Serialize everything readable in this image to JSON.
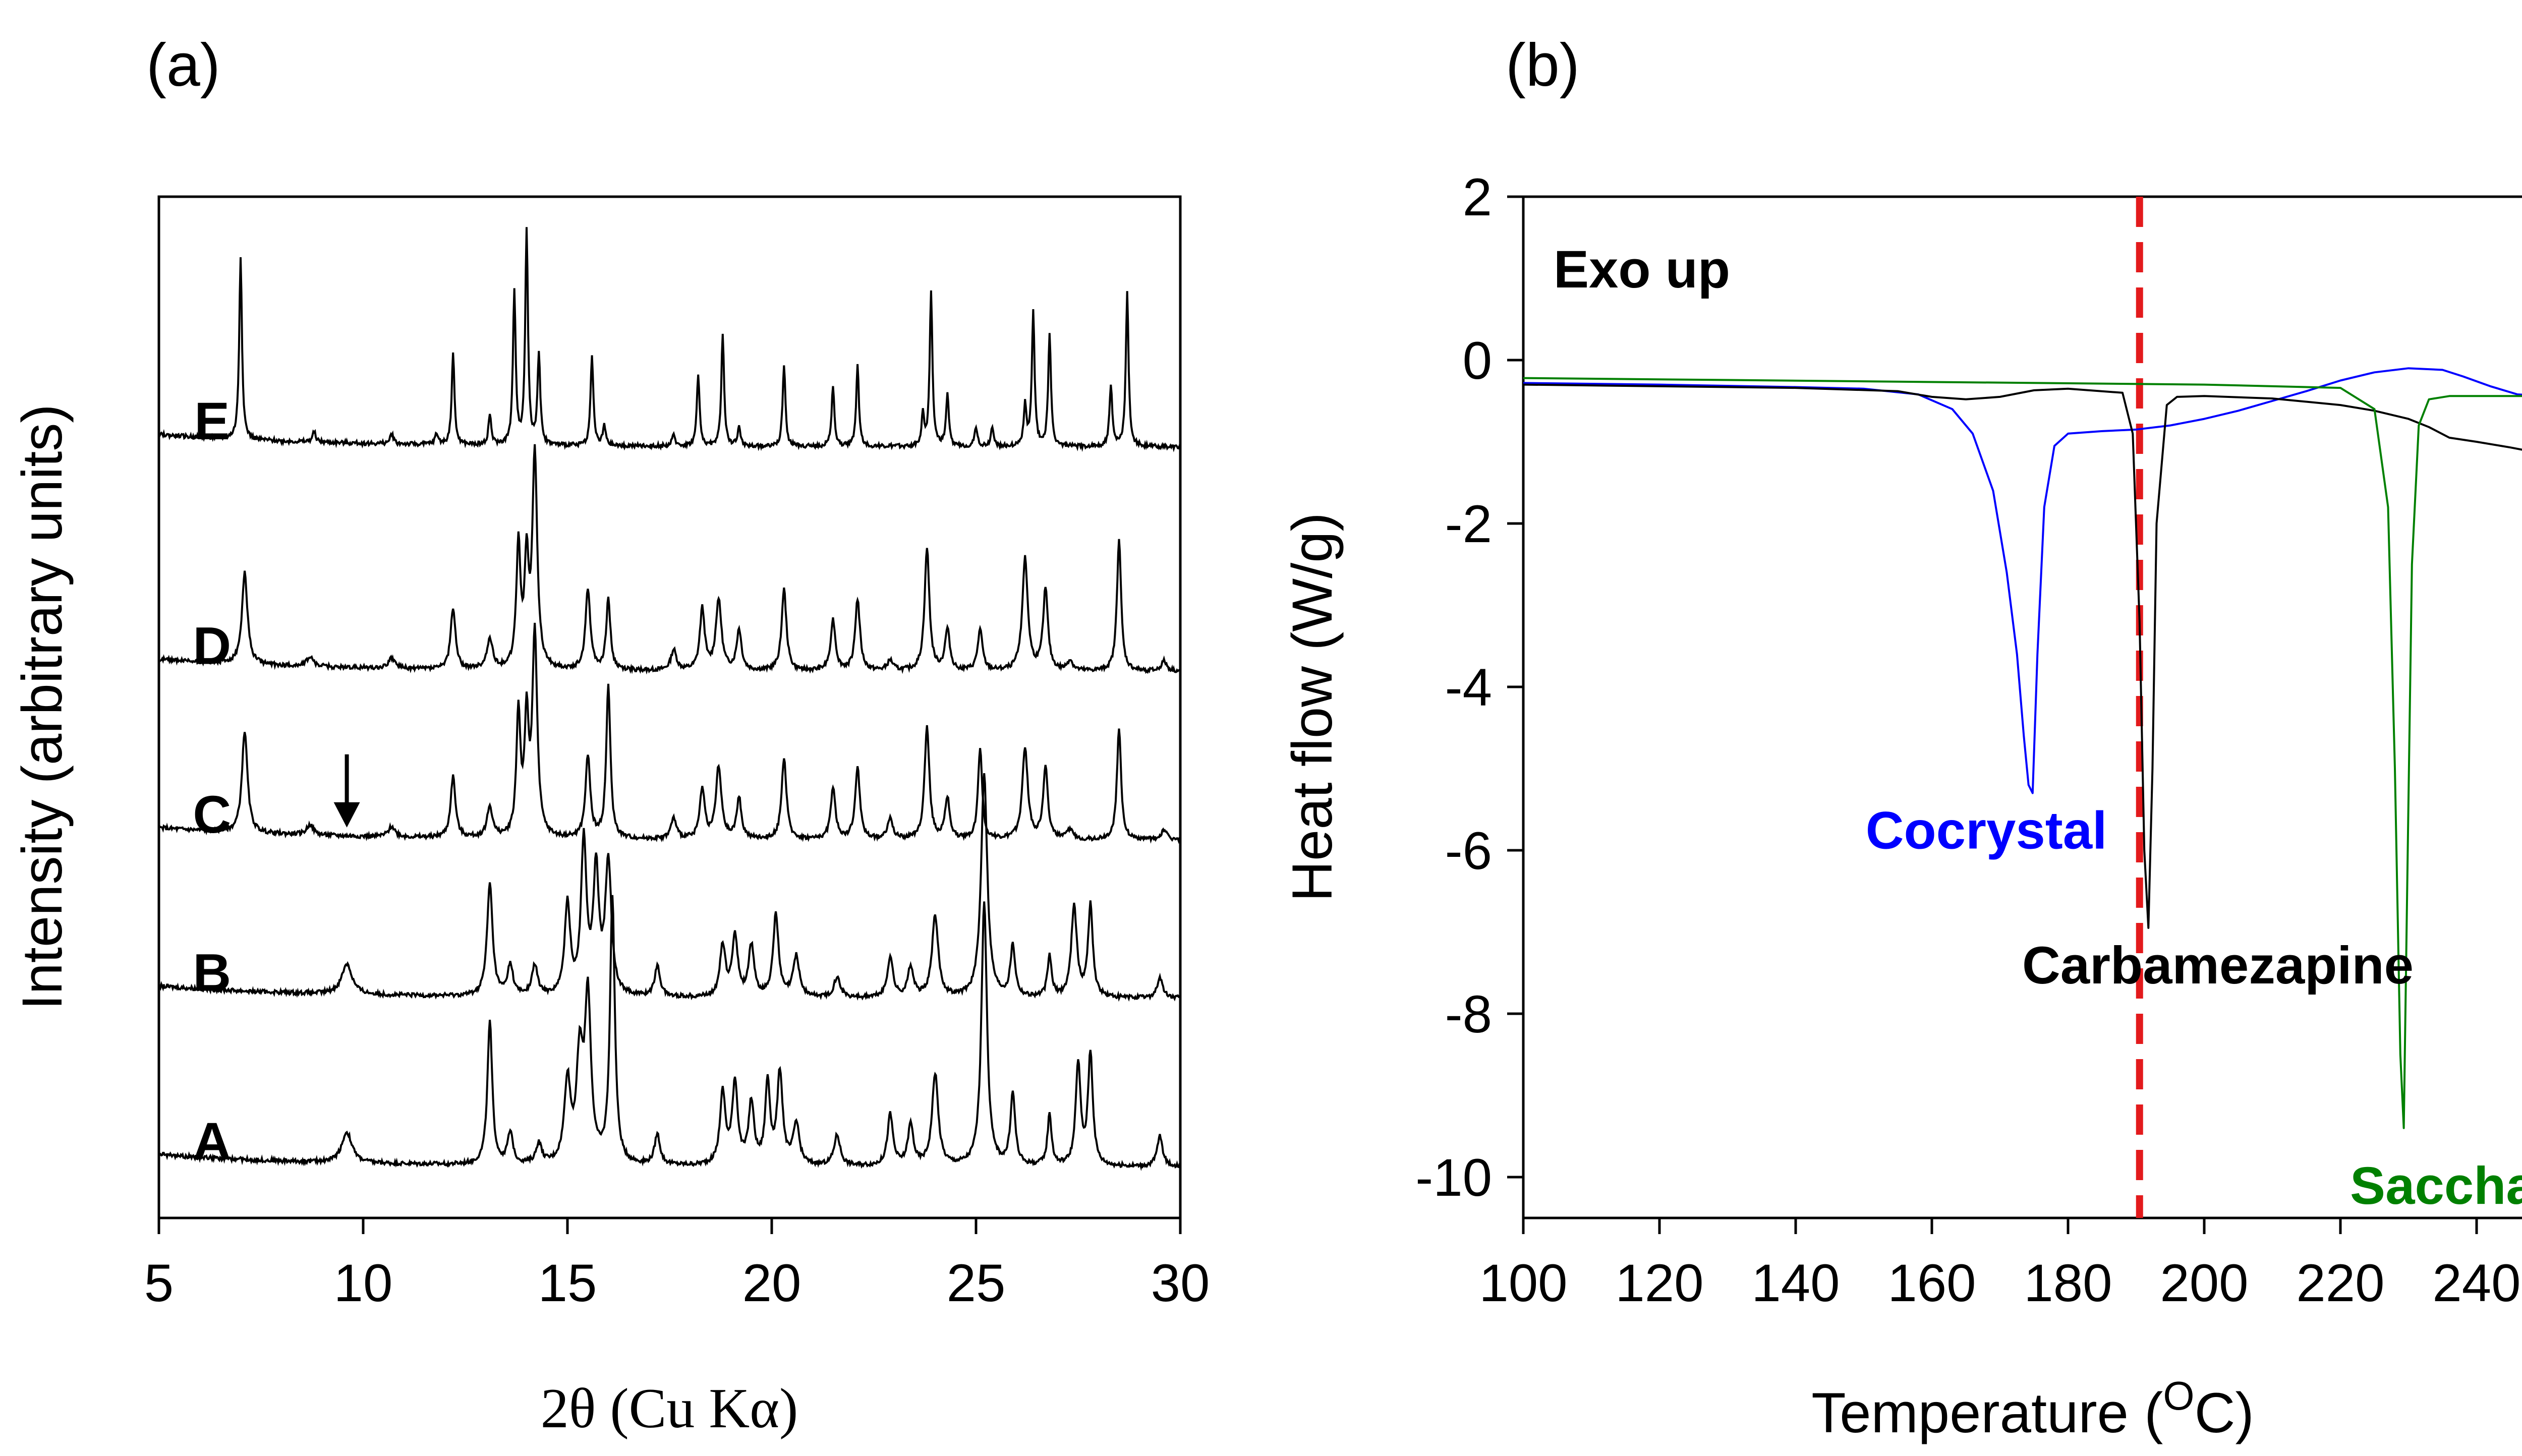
{
  "chart_data": [
    {
      "panel_label": "(a)",
      "type": "line",
      "title": "",
      "xlabel": "2θ (Cu Kα)",
      "ylabel": "Intensity (arbitrary units)",
      "xlim": [
        5,
        30
      ],
      "ylim": [
        0,
        1
      ],
      "xticks": [
        "5",
        "10",
        "15",
        "20",
        "25",
        "30"
      ],
      "grid": false,
      "series": [
        {
          "name": "A",
          "baseline": 0.05,
          "label_x": 6.3,
          "peaks": [
            [
              9.6,
              0.03,
              0.15
            ],
            [
              13.1,
              0.14,
              0.07
            ],
            [
              13.6,
              0.03,
              0.08
            ],
            [
              14.3,
              0.02,
              0.08
            ],
            [
              15.0,
              0.08,
              0.09
            ],
            [
              15.3,
              0.1,
              0.09
            ],
            [
              15.5,
              0.16,
              0.09
            ],
            [
              16.1,
              0.26,
              0.07
            ],
            [
              17.2,
              0.03,
              0.08
            ],
            [
              18.8,
              0.07,
              0.08
            ],
            [
              19.1,
              0.08,
              0.08
            ],
            [
              19.5,
              0.06,
              0.08
            ],
            [
              19.9,
              0.08,
              0.07
            ],
            [
              20.2,
              0.09,
              0.08
            ],
            [
              20.6,
              0.04,
              0.09
            ],
            [
              21.6,
              0.03,
              0.09
            ],
            [
              22.9,
              0.05,
              0.08
            ],
            [
              23.4,
              0.04,
              0.08
            ],
            [
              24.0,
              0.09,
              0.09
            ],
            [
              25.2,
              0.26,
              0.08
            ],
            [
              25.9,
              0.07,
              0.07
            ],
            [
              26.8,
              0.05,
              0.06
            ],
            [
              27.5,
              0.1,
              0.07
            ],
            [
              27.8,
              0.11,
              0.07
            ],
            [
              29.5,
              0.03,
              0.08
            ]
          ]
        },
        {
          "name": "B",
          "baseline": 0.215,
          "label_x": 6.3,
          "peaks": [
            [
              9.6,
              0.03,
              0.15
            ],
            [
              13.1,
              0.11,
              0.08
            ],
            [
              13.6,
              0.03,
              0.08
            ],
            [
              14.2,
              0.03,
              0.08
            ],
            [
              15.0,
              0.09,
              0.08
            ],
            [
              15.4,
              0.15,
              0.08
            ],
            [
              15.7,
              0.12,
              0.08
            ],
            [
              16.0,
              0.13,
              0.09
            ],
            [
              17.2,
              0.03,
              0.08
            ],
            [
              18.8,
              0.05,
              0.08
            ],
            [
              19.1,
              0.06,
              0.08
            ],
            [
              19.5,
              0.05,
              0.08
            ],
            [
              20.1,
              0.08,
              0.08
            ],
            [
              20.6,
              0.04,
              0.09
            ],
            [
              21.6,
              0.02,
              0.09
            ],
            [
              22.9,
              0.04,
              0.08
            ],
            [
              23.4,
              0.03,
              0.08
            ],
            [
              24.0,
              0.08,
              0.09
            ],
            [
              25.2,
              0.22,
              0.09
            ],
            [
              25.9,
              0.05,
              0.07
            ],
            [
              26.8,
              0.04,
              0.06
            ],
            [
              27.4,
              0.09,
              0.08
            ],
            [
              27.8,
              0.09,
              0.07
            ],
            [
              29.5,
              0.02,
              0.08
            ]
          ]
        },
        {
          "name": "C",
          "baseline": 0.37,
          "label_x": 6.3,
          "peaks": [
            [
              7.1,
              0.1,
              0.08
            ],
            [
              8.7,
              0.01,
              0.1
            ],
            [
              10.7,
              0.01,
              0.1
            ],
            [
              12.2,
              0.06,
              0.07
            ],
            [
              13.1,
              0.03,
              0.08
            ],
            [
              13.8,
              0.12,
              0.06
            ],
            [
              14.0,
              0.11,
              0.06
            ],
            [
              14.2,
              0.2,
              0.07
            ],
            [
              15.5,
              0.08,
              0.07
            ],
            [
              16.0,
              0.15,
              0.06
            ],
            [
              17.6,
              0.02,
              0.08
            ],
            [
              18.3,
              0.05,
              0.07
            ],
            [
              18.7,
              0.07,
              0.08
            ],
            [
              19.2,
              0.04,
              0.07
            ],
            [
              20.3,
              0.08,
              0.07
            ],
            [
              21.5,
              0.05,
              0.07
            ],
            [
              22.1,
              0.07,
              0.07
            ],
            [
              22.9,
              0.02,
              0.08
            ],
            [
              23.8,
              0.11,
              0.07
            ],
            [
              24.3,
              0.04,
              0.07
            ],
            [
              25.1,
              0.09,
              0.06
            ],
            [
              26.2,
              0.09,
              0.08
            ],
            [
              26.7,
              0.07,
              0.07
            ],
            [
              27.3,
              0.01,
              0.08
            ],
            [
              28.5,
              0.11,
              0.06
            ],
            [
              29.6,
              0.01,
              0.08
            ]
          ]
        },
        {
          "name": "D",
          "baseline": 0.535,
          "label_x": 6.3,
          "peaks": [
            [
              7.1,
              0.09,
              0.08
            ],
            [
              8.7,
              0.01,
              0.1
            ],
            [
              10.7,
              0.01,
              0.1
            ],
            [
              12.2,
              0.06,
              0.07
            ],
            [
              13.1,
              0.03,
              0.08
            ],
            [
              13.8,
              0.12,
              0.06
            ],
            [
              14.0,
              0.1,
              0.06
            ],
            [
              14.2,
              0.21,
              0.07
            ],
            [
              15.5,
              0.08,
              0.07
            ],
            [
              16.0,
              0.07,
              0.06
            ],
            [
              17.6,
              0.02,
              0.08
            ],
            [
              18.3,
              0.06,
              0.07
            ],
            [
              18.7,
              0.07,
              0.08
            ],
            [
              19.2,
              0.04,
              0.07
            ],
            [
              20.3,
              0.08,
              0.07
            ],
            [
              21.5,
              0.05,
              0.07
            ],
            [
              22.1,
              0.07,
              0.07
            ],
            [
              22.9,
              0.01,
              0.08
            ],
            [
              23.8,
              0.12,
              0.07
            ],
            [
              24.3,
              0.04,
              0.07
            ],
            [
              25.1,
              0.04,
              0.07
            ],
            [
              26.2,
              0.11,
              0.08
            ],
            [
              26.7,
              0.08,
              0.07
            ],
            [
              27.3,
              0.01,
              0.08
            ],
            [
              28.5,
              0.13,
              0.06
            ],
            [
              29.6,
              0.01,
              0.08
            ]
          ]
        },
        {
          "name": "E",
          "baseline": 0.755,
          "label_x": 6.3,
          "peaks": [
            [
              7.0,
              0.18,
              0.04
            ],
            [
              8.8,
              0.01,
              0.05
            ],
            [
              10.7,
              0.01,
              0.05
            ],
            [
              11.8,
              0.01,
              0.05
            ],
            [
              12.2,
              0.09,
              0.04
            ],
            [
              13.1,
              0.03,
              0.04
            ],
            [
              13.7,
              0.15,
              0.04
            ],
            [
              14.0,
              0.21,
              0.04
            ],
            [
              14.3,
              0.09,
              0.04
            ],
            [
              15.6,
              0.09,
              0.04
            ],
            [
              15.9,
              0.02,
              0.04
            ],
            [
              17.6,
              0.01,
              0.05
            ],
            [
              18.2,
              0.07,
              0.04
            ],
            [
              18.8,
              0.11,
              0.04
            ],
            [
              19.2,
              0.02,
              0.04
            ],
            [
              20.3,
              0.08,
              0.04
            ],
            [
              21.5,
              0.06,
              0.04
            ],
            [
              22.1,
              0.08,
              0.04
            ],
            [
              23.7,
              0.03,
              0.04
            ],
            [
              23.9,
              0.15,
              0.04
            ],
            [
              24.3,
              0.05,
              0.04
            ],
            [
              25.0,
              0.02,
              0.04
            ],
            [
              25.4,
              0.02,
              0.04
            ],
            [
              26.2,
              0.04,
              0.04
            ],
            [
              26.4,
              0.13,
              0.04
            ],
            [
              26.8,
              0.11,
              0.04
            ],
            [
              28.3,
              0.06,
              0.04
            ],
            [
              28.7,
              0.15,
              0.04
            ]
          ]
        }
      ],
      "annotations": [
        {
          "type": "arrow",
          "x": 9.6,
          "target_series": "C"
        }
      ]
    },
    {
      "panel_label": "(b)",
      "type": "line",
      "title": "",
      "xlabel": "Temperature (",
      "xlabel_sup": "O",
      "xlabel_tail": "C)",
      "ylabel": "Heat flow (W/g)",
      "xlim": [
        100,
        250
      ],
      "ylim": [
        -10.5,
        2
      ],
      "xticks": [
        100,
        120,
        140,
        160,
        180,
        200,
        220,
        240
      ],
      "yticks": [
        2,
        0,
        -2,
        -4,
        -6,
        -8,
        -10
      ],
      "grid": false,
      "annotation_text": "Exo up",
      "vline": {
        "x": 190.5,
        "color": "#e31a1c",
        "style": "dashed"
      },
      "series": [
        {
          "name": "Cocrystal",
          "color": "#0000ff",
          "x": [
            100,
            120,
            140,
            150,
            158,
            163,
            166,
            169,
            171,
            172.5,
            173.5,
            174.2,
            174.8,
            175.5,
            176.5,
            178,
            180,
            185,
            190,
            195,
            200,
            205,
            210,
            215,
            220,
            225,
            230,
            235,
            238,
            242,
            246,
            250
          ],
          "y": [
            -0.28,
            -0.3,
            -0.33,
            -0.35,
            -0.42,
            -0.6,
            -0.9,
            -1.6,
            -2.6,
            -3.6,
            -4.6,
            -5.2,
            -5.3,
            -3.6,
            -1.8,
            -1.05,
            -0.9,
            -0.87,
            -0.85,
            -0.8,
            -0.72,
            -0.62,
            -0.5,
            -0.38,
            -0.25,
            -0.15,
            -0.1,
            -0.12,
            -0.2,
            -0.32,
            -0.42,
            -0.44
          ]
        },
        {
          "name": "Carbamezapine",
          "color": "#000000",
          "x": [
            100,
            140,
            155,
            160,
            165,
            170,
            175,
            180,
            188,
            189.5,
            190.5,
            191.2,
            191.8,
            192.4,
            193,
            194.5,
            196,
            200,
            210,
            220,
            225,
            230,
            233,
            236,
            240,
            245,
            250
          ],
          "y": [
            -0.3,
            -0.34,
            -0.38,
            -0.45,
            -0.48,
            -0.45,
            -0.37,
            -0.35,
            -0.4,
            -0.9,
            -3.2,
            -6.0,
            -6.95,
            -5.0,
            -2.0,
            -0.55,
            -0.45,
            -0.44,
            -0.47,
            -0.55,
            -0.62,
            -0.72,
            -0.82,
            -0.95,
            -1.0,
            -1.07,
            -1.15
          ]
        },
        {
          "name": "Saccharin",
          "color": "#008000",
          "x": [
            100,
            150,
            200,
            220,
            225,
            227,
            228,
            228.8,
            229.3,
            229.8,
            230.5,
            231.5,
            233,
            236,
            240,
            250
          ],
          "y": [
            -0.22,
            -0.26,
            -0.3,
            -0.34,
            -0.6,
            -1.8,
            -5.0,
            -8.5,
            -9.4,
            -6.5,
            -2.5,
            -0.8,
            -0.48,
            -0.44,
            -0.44,
            -0.44
          ]
        }
      ],
      "labels": [
        {
          "series": "Cocrystal",
          "x": 168,
          "y": -5.75
        },
        {
          "series": "Carbamezapine",
          "x": 202,
          "y": -7.4
        },
        {
          "series": "Saccharin",
          "x": 240,
          "y": -10.1
        }
      ]
    }
  ]
}
